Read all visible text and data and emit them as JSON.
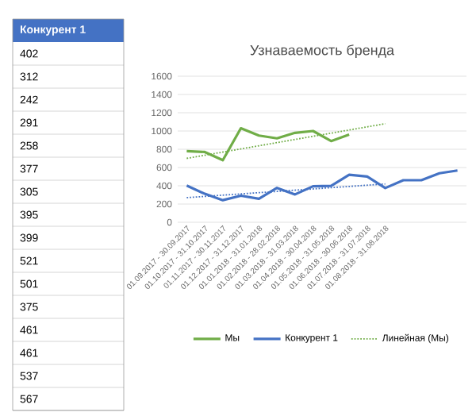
{
  "chart_data": [
    {
      "type": "other",
      "title": "Конкурент 1",
      "color": "#4472c4",
      "annotations": [
        "402",
        "312",
        "242",
        "291",
        "258",
        "377",
        "305",
        "395",
        "399",
        "521",
        "501",
        "375",
        "461",
        "461",
        "537",
        "567"
      ]
    },
    {
      "type": "line",
      "title": "Узнаваемость бренда",
      "categories": [
        "01.09.2017 - 30.09.2017",
        "01.10.2017 - 31.10.2017",
        "01.11.2017 - 30.11.2017",
        "01.12.2017 - 31.12.2017",
        "01.01.2018 - 31.01.2018",
        "01.02.2018 - 28.02.2018",
        "01.03.2018 - 31.03.2018",
        "01.04.2018 - 30.04.2018",
        "01.05.2018 - 31.05.2018",
        "01.06.2018 - 30.06.2018",
        "01.07.2018 - 31.07.2018",
        "01.08.2018 - 31.08.2018",
        null,
        null,
        null,
        null
      ],
      "series": [
        {
          "name": "Мы",
          "color": "#70ad47",
          "values": [
            780,
            770,
            680,
            1030,
            950,
            920,
            980,
            1000,
            890,
            960,
            null,
            null,
            null,
            null,
            null,
            null
          ]
        },
        {
          "name": "Конкурент 1",
          "color": "#4472c4",
          "values": [
            402,
            312,
            242,
            291,
            258,
            377,
            305,
            395,
            399,
            521,
            501,
            375,
            461,
            461,
            537,
            567
          ]
        },
        {
          "name": "Линейная (Мы)",
          "type": "line",
          "line_style": "dotted",
          "color": "#70ad47",
          "values": [
            700,
            null,
            null,
            null,
            null,
            null,
            null,
            null,
            null,
            null,
            null,
            1080,
            null,
            null,
            null,
            null
          ]
        },
        {
          "type": "line",
          "line_style": "dotted",
          "color": "#4472c4",
          "values": [
            270,
            null,
            null,
            null,
            null,
            null,
            null,
            null,
            null,
            null,
            null,
            420,
            null,
            null,
            null,
            null
          ]
        }
      ],
      "ylim": [
        0,
        1600
      ],
      "yticks": [
        0,
        200,
        400,
        600,
        800,
        1000,
        1200,
        1400,
        1600
      ],
      "grid": "y",
      "legend": "bottom",
      "marker": "none"
    }
  ]
}
